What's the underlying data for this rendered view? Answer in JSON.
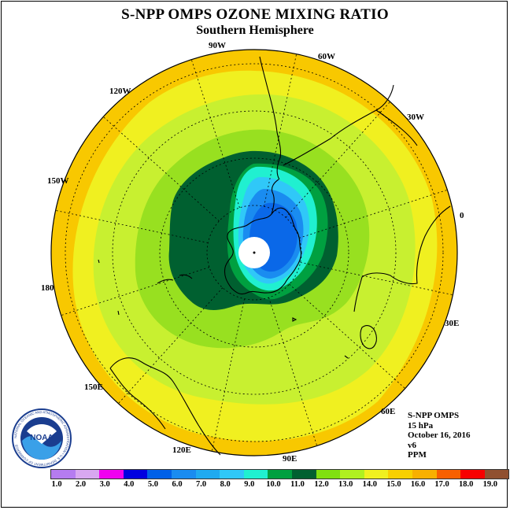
{
  "title": "S-NPP OMPS OZONE MIXING RATIO",
  "subtitle": "Southern Hemisphere",
  "lon_labels": {
    "w90": "90W",
    "w60": "60W",
    "w120": "120W",
    "w30": "30W",
    "w150": "150W",
    "zero": "0",
    "d180": "180",
    "e30": "30E",
    "e150": "150E",
    "e60": "60E",
    "e120": "120E",
    "e90": "90E"
  },
  "info": {
    "instrument": "S-NPP OMPS",
    "level": "15 hPa",
    "date": "October 16, 2016",
    "version": "v6",
    "units": "PPM"
  },
  "logo": {
    "text": "NOAA",
    "ring_text": "NATIONAL OCEANIC AND ATMOSPHERIC ADMINISTRATION • U.S. DEPARTMENT OF COMMERCE"
  },
  "colorbar": {
    "labels": [
      "1.0",
      "2.0",
      "3.0",
      "4.0",
      "5.0",
      "6.0",
      "7.0",
      "8.0",
      "9.0",
      "10.0",
      "11.0",
      "12.0",
      "13.0",
      "14.0",
      "15.0",
      "16.0",
      "17.0",
      "18.0",
      "19.0"
    ],
    "colors": [
      "#b57cf0",
      "#d8a8f0",
      "#f000f0",
      "#0000e0",
      "#0060e8",
      "#1a8cf0",
      "#20aaf0",
      "#30c8f8",
      "#20f0d0",
      "#00a040",
      "#006030",
      "#80e010",
      "#b0f020",
      "#f0f020",
      "#f8d000",
      "#f8b000",
      "#f86000",
      "#f80000",
      "#905030"
    ]
  },
  "map_colors": {
    "c14_15": "#f8c800",
    "c13_14": "#f0f020",
    "c12_13": "#c8f030",
    "c11_12": "#98e020",
    "c10_11": "#006030",
    "c9_10": "#00a040",
    "c8_9": "#20f0d0",
    "c7_8": "#30c8f8",
    "c6_7": "#1a8cf0",
    "c5_6": "#0a68e8"
  }
}
